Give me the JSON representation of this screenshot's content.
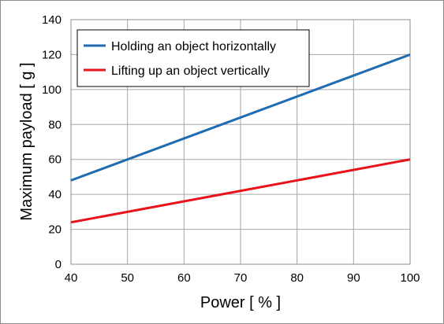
{
  "chart_data": {
    "type": "line",
    "xlabel": "Power [ % ]",
    "ylabel": "Maximum payload [ g ]",
    "xlim": [
      40,
      100
    ],
    "ylim": [
      0,
      140
    ],
    "xticks": [
      40,
      50,
      60,
      70,
      80,
      90,
      100
    ],
    "yticks": [
      0,
      20,
      40,
      60,
      80,
      100,
      120,
      140
    ],
    "grid": true,
    "legend_position": "top-left",
    "series": [
      {
        "name": "Holding an object horizontally",
        "color": "#1f6cb0",
        "x": [
          40,
          100
        ],
        "y": [
          48,
          120
        ]
      },
      {
        "name": "Lifting up an object vertically",
        "color": "#e8131b",
        "x": [
          40,
          100
        ],
        "y": [
          24,
          60
        ]
      }
    ]
  }
}
